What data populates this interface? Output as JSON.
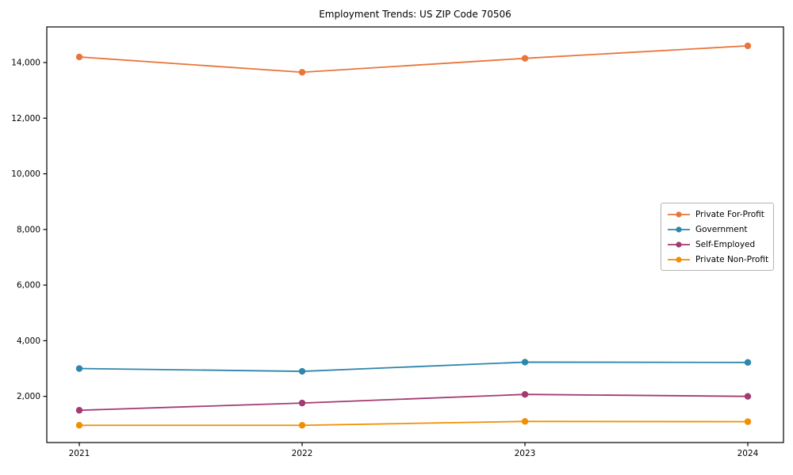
{
  "title": "Employment Trends: US ZIP Code 70506",
  "chart_data": {
    "type": "line",
    "title": "Employment Trends: US ZIP Code 70506",
    "xlabel": "",
    "ylabel": "",
    "x": [
      2021,
      2022,
      2023,
      2024
    ],
    "x_tick_labels": [
      "2021",
      "2022",
      "2023",
      "2024"
    ],
    "series": [
      {
        "name": "Private For-Profit",
        "color": "#E8763B",
        "values": [
          14200,
          13650,
          14150,
          14600
        ]
      },
      {
        "name": "Government",
        "color": "#2E86AB",
        "values": [
          3000,
          2900,
          3230,
          3220
        ]
      },
      {
        "name": "Self-Employed",
        "color": "#A23B72",
        "values": [
          1500,
          1760,
          2070,
          2000
        ]
      },
      {
        "name": "Private Non-Profit",
        "color": "#F18F01",
        "values": [
          960,
          960,
          1100,
          1090
        ]
      }
    ],
    "yticks": [
      2000,
      4000,
      6000,
      8000,
      10000,
      12000,
      14000
    ],
    "ylim": [
      340,
      15280
    ],
    "grid": false,
    "legend_position": "center right",
    "marker": "circle",
    "line_width": 1.8,
    "marker_radius": 4.2,
    "axis_color": "#000000"
  }
}
